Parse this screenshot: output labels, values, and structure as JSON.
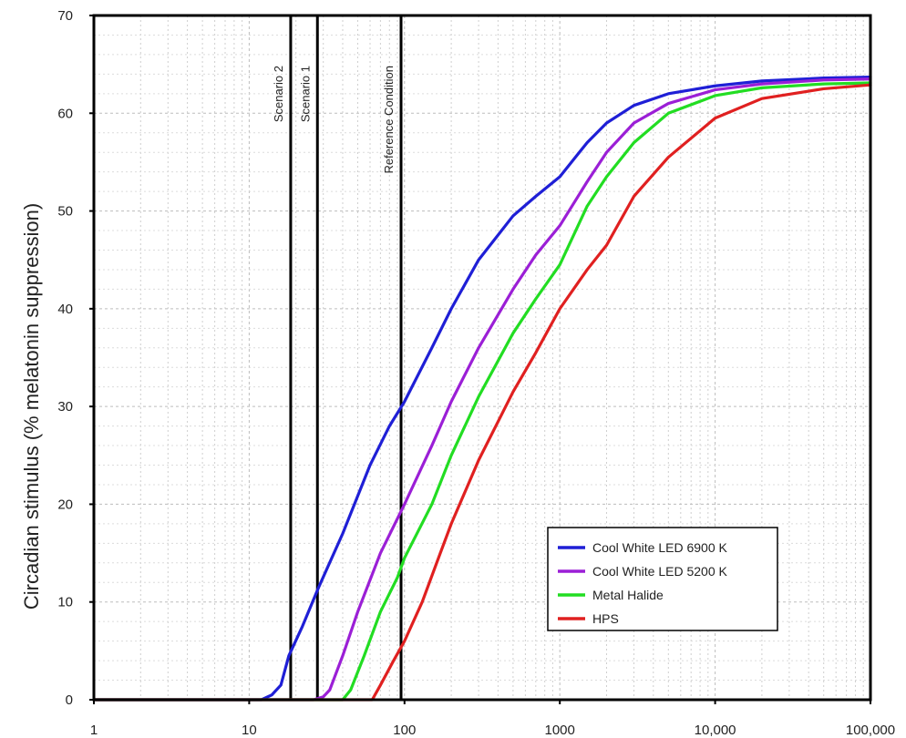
{
  "chart_data": {
    "type": "line",
    "title": "",
    "xlabel": "",
    "ylabel": "Circadian stimulus (% melatonin suppression)",
    "x_scale": "log",
    "xlim": [
      1,
      100000
    ],
    "ylim": [
      0,
      70
    ],
    "x_ticks": [
      1,
      10,
      100,
      1000,
      10000,
      100000
    ],
    "x_tick_labels": [
      "1",
      "10",
      "100",
      "1000",
      "10,000",
      "100,000"
    ],
    "y_ticks": [
      0,
      10,
      20,
      30,
      40,
      50,
      60,
      70
    ],
    "y_tick_labels": [
      "0",
      "10",
      "20",
      "30",
      "40",
      "50",
      "60",
      "70"
    ],
    "grid": "dotted",
    "legend_position": "bottom-right",
    "series": [
      {
        "name": "Cool White LED 6900 K",
        "color": "#1f1fd6",
        "points": [
          [
            1,
            0
          ],
          [
            12,
            0
          ],
          [
            14,
            0.5
          ],
          [
            16,
            1.5
          ],
          [
            18,
            4.5
          ],
          [
            22,
            7.5
          ],
          [
            28,
            11.5
          ],
          [
            40,
            17
          ],
          [
            60,
            24
          ],
          [
            80,
            28
          ],
          [
            100,
            30.5
          ],
          [
            150,
            36
          ],
          [
            200,
            40
          ],
          [
            300,
            45
          ],
          [
            500,
            49.5
          ],
          [
            700,
            51.5
          ],
          [
            1000,
            53.5
          ],
          [
            1500,
            57
          ],
          [
            2000,
            59
          ],
          [
            3000,
            60.8
          ],
          [
            5000,
            62
          ],
          [
            10000,
            62.8
          ],
          [
            20000,
            63.3
          ],
          [
            50000,
            63.6
          ],
          [
            100000,
            63.7
          ]
        ]
      },
      {
        "name": "Cool White LED 5200 K",
        "color": "#9b1fd6",
        "points": [
          [
            1,
            0
          ],
          [
            26,
            0
          ],
          [
            30,
            0.3
          ],
          [
            33,
            1
          ],
          [
            40,
            4.5
          ],
          [
            50,
            9
          ],
          [
            70,
            15
          ],
          [
            100,
            20
          ],
          [
            150,
            26
          ],
          [
            200,
            30.5
          ],
          [
            300,
            36
          ],
          [
            500,
            42
          ],
          [
            700,
            45.5
          ],
          [
            1000,
            48.5
          ],
          [
            1500,
            53
          ],
          [
            2000,
            56
          ],
          [
            3000,
            59
          ],
          [
            5000,
            61
          ],
          [
            10000,
            62.4
          ],
          [
            20000,
            63
          ],
          [
            50000,
            63.4
          ],
          [
            100000,
            63.5
          ]
        ]
      },
      {
        "name": "Metal Halide",
        "color": "#22dd22",
        "points": [
          [
            1,
            0
          ],
          [
            40,
            0
          ],
          [
            45,
            1
          ],
          [
            55,
            4.5
          ],
          [
            70,
            9
          ],
          [
            90,
            12.5
          ],
          [
            100,
            14.5
          ],
          [
            150,
            20
          ],
          [
            200,
            25
          ],
          [
            300,
            31
          ],
          [
            500,
            37.5
          ],
          [
            700,
            41
          ],
          [
            1000,
            44.5
          ],
          [
            1500,
            50.5
          ],
          [
            2000,
            53.5
          ],
          [
            3000,
            57
          ],
          [
            5000,
            60
          ],
          [
            10000,
            61.8
          ],
          [
            20000,
            62.6
          ],
          [
            50000,
            63
          ],
          [
            100000,
            63.1
          ]
        ]
      },
      {
        "name": "HPS",
        "color": "#e02020",
        "points": [
          [
            1,
            0
          ],
          [
            62,
            0
          ],
          [
            70,
            1.5
          ],
          [
            85,
            4
          ],
          [
            100,
            6
          ],
          [
            130,
            10
          ],
          [
            170,
            15
          ],
          [
            200,
            18
          ],
          [
            300,
            24.5
          ],
          [
            500,
            31.5
          ],
          [
            700,
            35.5
          ],
          [
            1000,
            40
          ],
          [
            1500,
            44
          ],
          [
            2000,
            46.5
          ],
          [
            3000,
            51.5
          ],
          [
            5000,
            55.5
          ],
          [
            10000,
            59.5
          ],
          [
            20000,
            61.5
          ],
          [
            50000,
            62.5
          ],
          [
            100000,
            62.9
          ]
        ]
      }
    ],
    "reference_lines": [
      {
        "x": 18.5,
        "label": "Scenario 2"
      },
      {
        "x": 27.5,
        "label": "Scenario 1"
      },
      {
        "x": 95,
        "label": "Reference Condition"
      }
    ]
  }
}
